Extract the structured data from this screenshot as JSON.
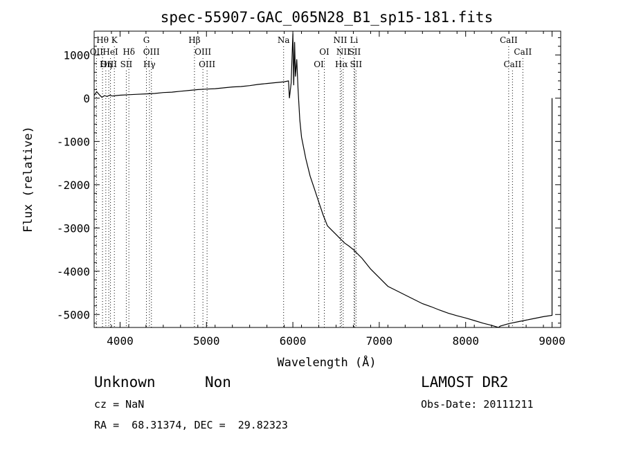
{
  "chart_data": {
    "type": "line",
    "title": "spec-55907-GAC_065N28_B1_sp15-181.fits",
    "xlabel": "Wavelength (Å)",
    "ylabel": "Flux (relative)",
    "xlim": [
      3700,
      9100
    ],
    "ylim": [
      -5300,
      1550
    ],
    "x_ticks": [
      4000,
      5000,
      6000,
      7000,
      8000,
      9000
    ],
    "y_ticks": [
      1000,
      0,
      -1000,
      -2000,
      -3000,
      -4000,
      -5000
    ],
    "grid": false,
    "series": [
      {
        "color": "#000000",
        "x": [
          3700,
          3730,
          3760,
          3790,
          3820,
          3850,
          3880,
          3910,
          3950,
          4000,
          4100,
          4200,
          4300,
          4400,
          4500,
          4600,
          4700,
          4800,
          4900,
          5000,
          5100,
          5200,
          5300,
          5400,
          5500,
          5600,
          5700,
          5800,
          5900,
          5950,
          5960,
          5980,
          6000,
          6010,
          6020,
          6030,
          6045,
          6060,
          6080,
          6100,
          6150,
          6200,
          6250,
          6300,
          6350,
          6400,
          6450,
          6500,
          6550,
          6600,
          6650,
          6700,
          6750,
          6800,
          6900,
          7000,
          7100,
          7200,
          7300,
          7400,
          7500,
          7600,
          7700,
          7800,
          7900,
          8000,
          8100,
          8200,
          8300,
          8380,
          8400,
          8500,
          8600,
          8700,
          8800,
          8900,
          9000,
          9000
        ],
        "y": [
          60,
          150,
          80,
          20,
          60,
          40,
          70,
          50,
          60,
          70,
          80,
          90,
          100,
          110,
          130,
          140,
          160,
          180,
          200,
          210,
          220,
          240,
          260,
          270,
          290,
          320,
          340,
          360,
          380,
          400,
          0,
          350,
          1500,
          300,
          1300,
          500,
          900,
          200,
          -500,
          -900,
          -1400,
          -1800,
          -2100,
          -2400,
          -2700,
          -2950,
          -3050,
          -3150,
          -3250,
          -3350,
          -3420,
          -3500,
          -3600,
          -3700,
          -3950,
          -4150,
          -4350,
          -4450,
          -4550,
          -4650,
          -4750,
          -4820,
          -4900,
          -4970,
          -5030,
          -5080,
          -5140,
          -5200,
          -5250,
          -5300,
          -5270,
          -5210,
          -5170,
          -5130,
          -5090,
          -5050,
          -5020,
          0
        ]
      }
    ],
    "spectral_lines": [
      {
        "label": "Hθ",
        "x": 3797,
        "row": 1
      },
      {
        "label": "OII",
        "x": 3727,
        "row": 2
      },
      {
        "label": "OIII",
        "x": 3869,
        "row": 3
      },
      {
        "label": "HeI",
        "x": 3889,
        "row": 2
      },
      {
        "label": "Hη",
        "x": 3835,
        "row": 3
      },
      {
        "label": "K",
        "x": 3934,
        "row": 1
      },
      {
        "label": "Hδ",
        "x": 4102,
        "row": 2
      },
      {
        "label": "SII",
        "x": 4072,
        "row": 3
      },
      {
        "label": "G",
        "x": 4305,
        "row": 1
      },
      {
        "label": "OIII",
        "x": 4363,
        "row": 2
      },
      {
        "label": "Hγ",
        "x": 4340,
        "row": 3
      },
      {
        "label": "Hβ",
        "x": 4861,
        "row": 1
      },
      {
        "label": "OIII",
        "x": 4959,
        "row": 2
      },
      {
        "label": "OIII",
        "x": 5007,
        "row": 3
      },
      {
        "label": "Na",
        "x": 5893,
        "row": 1
      },
      {
        "label": "OI",
        "x": 6364,
        "row": 2
      },
      {
        "label": "OI",
        "x": 6300,
        "row": 3
      },
      {
        "label": "NII",
        "x": 6548,
        "row": 1
      },
      {
        "label": "NII",
        "x": 6583,
        "row": 2
      },
      {
        "label": "Hα",
        "x": 6563,
        "row": 3
      },
      {
        "label": "Li",
        "x": 6708,
        "row": 1
      },
      {
        "label": "SII",
        "x": 6716,
        "row": 2
      },
      {
        "label": "SII",
        "x": 6731,
        "row": 3
      },
      {
        "label": "CaII",
        "x": 8498,
        "row": 1
      },
      {
        "label": "CaII",
        "x": 8662,
        "row": 2
      },
      {
        "label": "CaII",
        "x": 8542,
        "row": 3
      }
    ]
  },
  "info": {
    "class": "Unknown",
    "subclass": "Non",
    "survey": "LAMOST DR2",
    "cz": "cz = NaN",
    "obs_date": "Obs-Date: 20111211",
    "coords": "RA =  68.31374, DEC =  29.82323"
  }
}
